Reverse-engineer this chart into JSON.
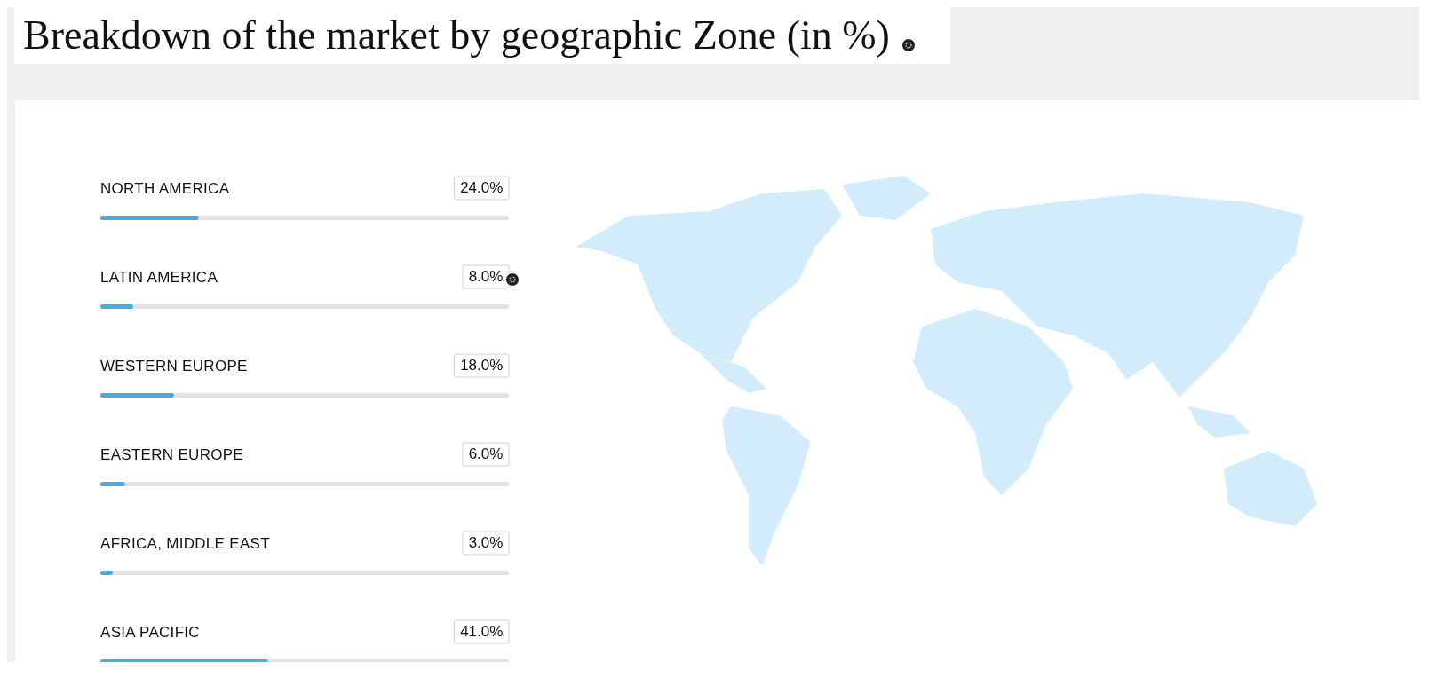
{
  "chart_data": {
    "type": "bar",
    "orientation": "horizontal",
    "title": "Breakdown of the market by geographic Zone (in %)",
    "categories": [
      "NORTH AMERICA",
      "LATIN AMERICA",
      "WESTERN EUROPE",
      "EASTERN EUROPE",
      "AFRICA, MIDDLE EAST",
      "ASIA PACIFIC"
    ],
    "values": [
      24.0,
      8.0,
      18.0,
      6.0,
      3.0,
      41.0
    ],
    "value_labels": [
      "24.0%",
      "8.0%",
      "18.0%",
      "6.0%",
      "3.0%",
      "41.0%"
    ],
    "color": "#4aabe3",
    "xlim": [
      0,
      100
    ],
    "tick_labels": false
  }
}
